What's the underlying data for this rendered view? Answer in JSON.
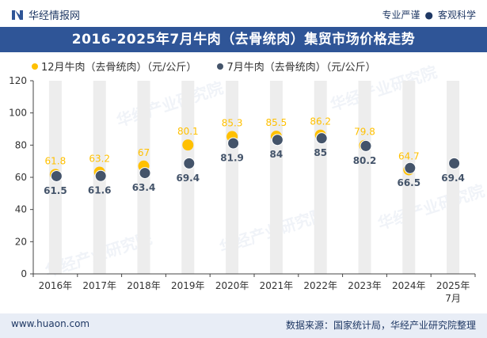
{
  "header": {
    "brand_name": "华经情报网",
    "tag1": "专业严谨",
    "tag2": "客观科学"
  },
  "title": "2016-2025年7月牛肉（去骨统肉）集贸市场价格走势",
  "footer": {
    "site": "www.huaon.com",
    "source": "数据来源：国家统计局，华经产业研究院整理"
  },
  "watermark": "华经产业研究院",
  "colors": {
    "header_bg": "#2f5597",
    "orange": "#ffc000",
    "navy": "#44546a",
    "footer_bg": "#e8edf6"
  },
  "chart_data": {
    "type": "scatter",
    "categories": [
      "2016年",
      "2017年",
      "2018年",
      "2019年",
      "2020年",
      "2021年",
      "2022年",
      "2023年",
      "2024年",
      "2025年7月"
    ],
    "series": [
      {
        "name": "12月牛肉（去骨统肉）（元/公斤）",
        "color": "#ffc000",
        "values": [
          61.8,
          63.2,
          67,
          80.1,
          85.3,
          85.5,
          86.2,
          79.8,
          64.7,
          null
        ],
        "labels": [
          "61.8",
          "63.2",
          "67",
          "80.1",
          "85.3",
          "85.5",
          "86.2",
          "79.8",
          "64.7",
          ""
        ]
      },
      {
        "name": "7月牛肉（去骨统肉）（元/公斤）",
        "color": "#44546a",
        "values": [
          61.5,
          61.6,
          63.4,
          69.4,
          81.9,
          84,
          85,
          80.2,
          66.5,
          69.4
        ],
        "labels": [
          "61.5",
          "61.6",
          "63.4",
          "69.4",
          "81.9",
          "84",
          "85",
          "80.2",
          "66.5",
          "69.4"
        ]
      }
    ],
    "ylim": [
      0,
      120
    ],
    "yticks": [
      "0",
      "20",
      "40",
      "60",
      "80",
      "100",
      "120"
    ],
    "legend_position": "top-left",
    "grid": false
  }
}
